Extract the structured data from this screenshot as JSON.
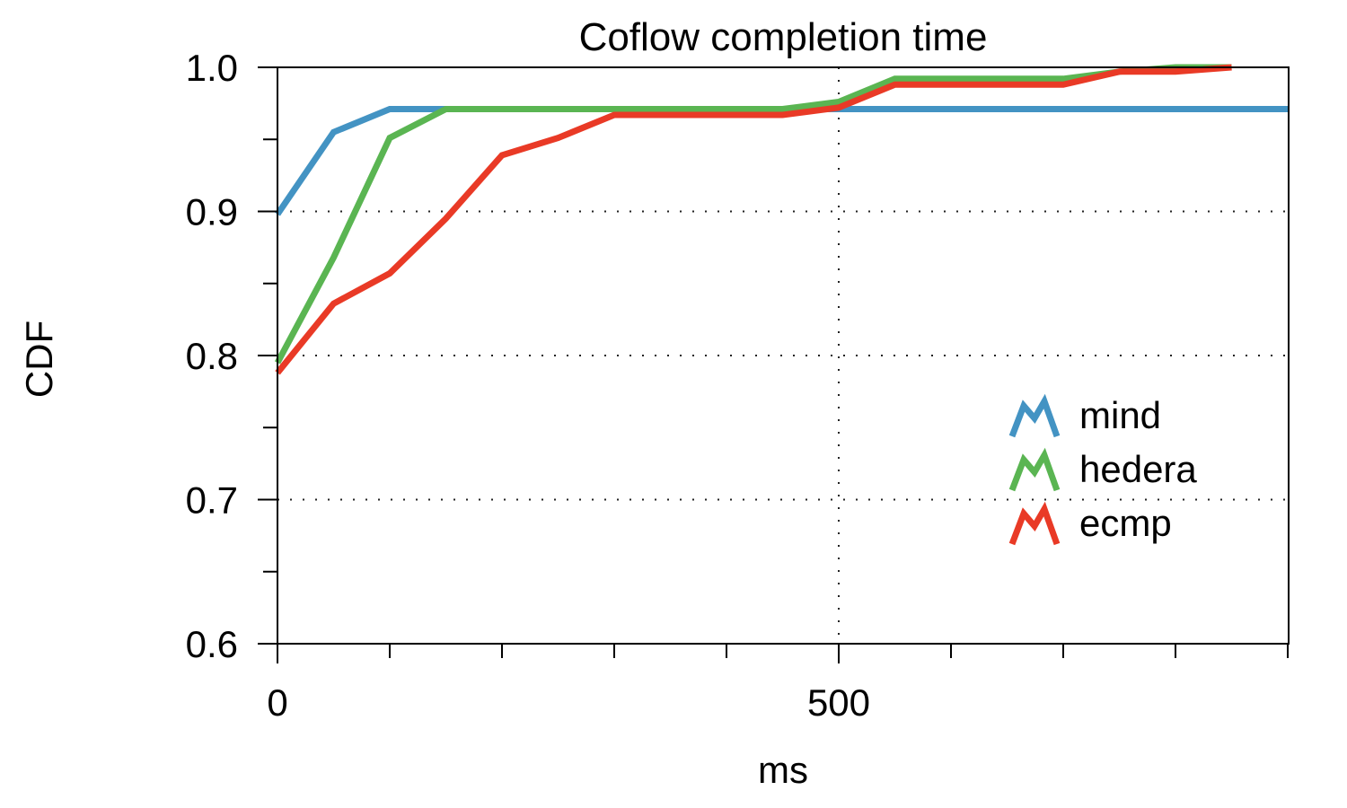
{
  "chart_data": {
    "type": "line",
    "title": "Coflow completion time",
    "xlabel": "ms",
    "ylabel": "CDF",
    "xlim": [
      0,
      900
    ],
    "ylim": [
      0.6,
      1.0
    ],
    "xticks_major": [
      0,
      500
    ],
    "xticks_minor": [
      100,
      200,
      300,
      400,
      600,
      700,
      800,
      900
    ],
    "yticks_major": [
      0.6,
      0.7,
      0.8,
      0.9,
      1.0
    ],
    "yticks_minor": [
      0.65,
      0.75,
      0.85,
      0.95
    ],
    "ytick_labels": [
      "0.6",
      "0.7",
      "0.8",
      "0.9",
      "1.0"
    ],
    "xtick_labels": [
      "0",
      "500"
    ],
    "grid": {
      "horizontal": [
        0.7,
        0.8,
        0.9
      ],
      "vertical": [
        500
      ],
      "style": "dotted"
    },
    "legend_position": "right-center",
    "series": [
      {
        "name": "mind",
        "color": "#4393c3",
        "points": [
          [
            0,
            0.898
          ],
          [
            50,
            0.955
          ],
          [
            100,
            0.971
          ],
          [
            150,
            0.971
          ],
          [
            950,
            0.971
          ]
        ]
      },
      {
        "name": "hedera",
        "color": "#5ab552",
        "points": [
          [
            0,
            0.795
          ],
          [
            50,
            0.868
          ],
          [
            100,
            0.951
          ],
          [
            150,
            0.971
          ],
          [
            450,
            0.971
          ],
          [
            500,
            0.976
          ],
          [
            550,
            0.992
          ],
          [
            700,
            0.992
          ],
          [
            750,
            0.997
          ],
          [
            800,
            1.0
          ],
          [
            850,
            1.0
          ]
        ]
      },
      {
        "name": "ecmp",
        "color": "#e93a26",
        "points": [
          [
            0,
            0.788
          ],
          [
            50,
            0.836
          ],
          [
            100,
            0.857
          ],
          [
            150,
            0.895
          ],
          [
            200,
            0.939
          ],
          [
            250,
            0.951
          ],
          [
            300,
            0.967
          ],
          [
            450,
            0.967
          ],
          [
            500,
            0.972
          ],
          [
            550,
            0.988
          ],
          [
            700,
            0.988
          ],
          [
            750,
            0.997
          ],
          [
            800,
            0.997
          ],
          [
            850,
            1.0
          ]
        ]
      }
    ]
  }
}
